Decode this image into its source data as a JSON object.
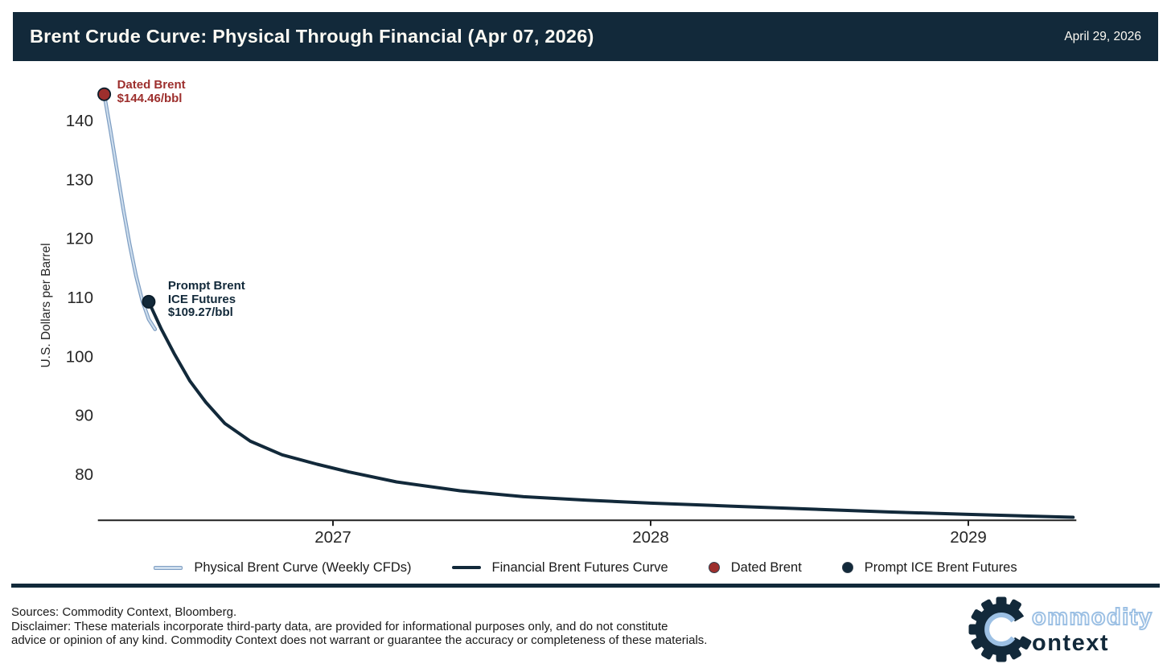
{
  "header": {
    "title": "Brent Crude Curve: Physical Through Financial (Apr 07, 2026)",
    "date": "April 29, 2026"
  },
  "colors": {
    "navy": "#12293a",
    "navy_dark_edge": "#0b1d2b",
    "red": "#9d2f2d",
    "light_blue_core": "#cddded",
    "light_blue_edge": "#7d9dc2",
    "logo_blue": "#9cc0e4",
    "axis_line": "#212121",
    "tick_text": "#262626",
    "header_text": "#fdfaf3"
  },
  "chart_data": {
    "type": "line",
    "title": "Brent Crude Curve: Physical Through Financial (Apr 07, 2026)",
    "xlabel": "",
    "ylabel": "U.S. Dollars per Barrel",
    "xlim": [
      2026.26,
      2029.34
    ],
    "ylim": [
      72.2,
      150.0
    ],
    "grid": false,
    "legend_position": "bottom",
    "yticks": [
      80,
      90,
      100,
      110,
      120,
      130,
      140
    ],
    "xticks": [
      2027,
      2028,
      2029
    ],
    "xtick_labels": [
      "2027",
      "2028",
      "2029"
    ],
    "series": [
      {
        "name": "Physical Brent Curve (Weekly CFDs)",
        "color_key": "light_blue_core",
        "edge_key": "light_blue_edge",
        "x": [
          2026.28,
          2026.3,
          2026.32,
          2026.34,
          2026.36,
          2026.38,
          2026.4,
          2026.42,
          2026.44
        ],
        "values": [
          144.46,
          138.2,
          131.6,
          125.0,
          119.0,
          113.7,
          109.4,
          106.3,
          104.6
        ]
      },
      {
        "name": "Financial Brent Futures Curve",
        "color_key": "navy",
        "x": [
          2026.42,
          2026.46,
          2026.5,
          2026.55,
          2026.6,
          2026.66,
          2026.74,
          2026.84,
          2026.95,
          2027.05,
          2027.2,
          2027.4,
          2027.6,
          2027.8,
          2028.0,
          2028.25,
          2028.5,
          2028.75,
          2029.0,
          2029.33
        ],
        "values": [
          109.27,
          104.6,
          100.5,
          95.8,
          92.2,
          88.6,
          85.6,
          83.3,
          81.7,
          80.4,
          78.7,
          77.2,
          76.2,
          75.6,
          75.1,
          74.6,
          74.1,
          73.6,
          73.2,
          72.7
        ]
      }
    ],
    "markers": [
      {
        "name": "Dated Brent",
        "x": 2026.28,
        "value": 144.46,
        "color_key": "red"
      },
      {
        "name": "Prompt ICE Brent Futures",
        "x": 2026.42,
        "value": 109.27,
        "color_key": "navy"
      }
    ],
    "annotations": [
      {
        "id": "dated-brent",
        "lines": [
          "Dated Brent",
          "$144.46/bbl"
        ],
        "color_key": "red",
        "anchor_x": 2026.28,
        "anchor_value": 144.46
      },
      {
        "id": "prompt-ice",
        "lines": [
          "Prompt Brent",
          "ICE Futures",
          "$109.27/bbl"
        ],
        "color_key": "navy",
        "anchor_x": 2026.42,
        "anchor_value": 109.27
      }
    ]
  },
  "legend": {
    "items": [
      {
        "label": "Physical Brent Curve (Weekly CFDs)",
        "marker": "line",
        "color_key": "light_blue_core",
        "edge_key": "light_blue_edge"
      },
      {
        "label": "Financial Brent Futures Curve",
        "marker": "line",
        "color_key": "navy"
      },
      {
        "label": "Dated Brent",
        "marker": "dot",
        "color_key": "red"
      },
      {
        "label": "Prompt ICE Brent Futures",
        "marker": "dot",
        "color_key": "navy"
      }
    ]
  },
  "footer": {
    "sources": "Sources: Commodity Context, Bloomberg.",
    "disclaimer_line1": "Disclaimer: These materials incorporate third-party data, are provided for informational purposes only, and do not constitute",
    "disclaimer_line2": "advice or opinion of any kind. Commodity Context does not warrant or guarantee the accuracy or completeness of these materials.",
    "logo_text_top": "ommodity",
    "logo_text_bottom": "ontext"
  }
}
